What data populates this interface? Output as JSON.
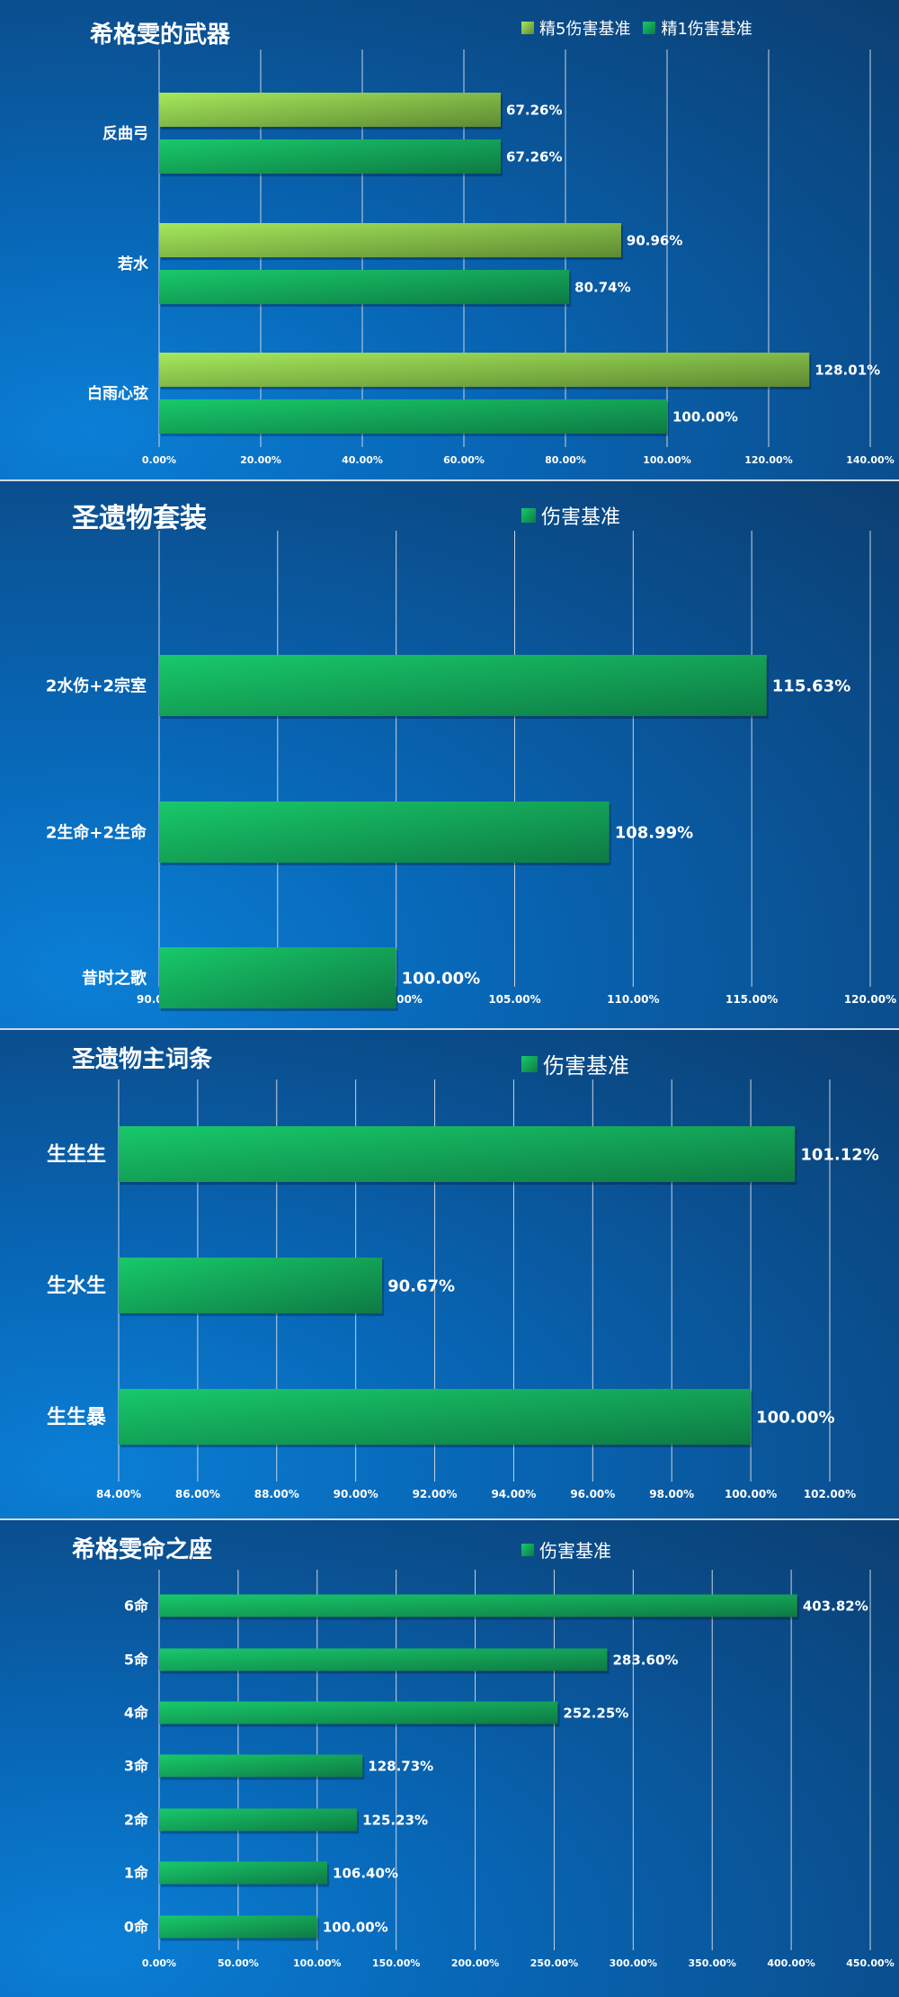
{
  "chart_data": [
    {
      "type": "bar",
      "title": "希格雯的武器",
      "categories": [
        "反曲弓",
        "若水",
        "白雨心弦"
      ],
      "series": [
        {
          "name": "精5伤害基准",
          "values": [
            67.26,
            90.96,
            128.01
          ],
          "value_labels": [
            "67.26%",
            "90.96%",
            "128.01%"
          ]
        },
        {
          "name": "精1伤害基准",
          "values": [
            67.26,
            80.74,
            100.0
          ],
          "value_labels": [
            "67.26%",
            "80.74%",
            "100.00%"
          ]
        }
      ],
      "xlim": [
        0,
        140
      ],
      "ticks": [
        "0.00%",
        "20.00%",
        "40.00%",
        "60.00%",
        "80.00%",
        "100.00%",
        "120.00%",
        "140.00%"
      ],
      "legend_position": "top-right",
      "grid": true
    },
    {
      "type": "bar",
      "title": "圣遗物套装",
      "categories": [
        "2水伤+2宗室",
        "2生命+2生命",
        "昔时之歌"
      ],
      "series": [
        {
          "name": "伤害基准",
          "values": [
            115.63,
            108.99,
            100.0
          ],
          "value_labels": [
            "115.63%",
            "108.99%",
            "100.00%"
          ]
        }
      ],
      "xlim": [
        90,
        120
      ],
      "ticks": [
        "90.00%",
        "95.00%",
        "100.00%",
        "105.00%",
        "110.00%",
        "115.00%",
        "120.00%"
      ],
      "legend_position": "top-center",
      "grid": true
    },
    {
      "type": "bar",
      "title": "圣遗物主词条",
      "categories": [
        "生生生",
        "生水生",
        "生生暴"
      ],
      "series": [
        {
          "name": "伤害基准",
          "values": [
            101.12,
            90.67,
            100.0
          ],
          "value_labels": [
            "101.12%",
            "90.67%",
            "100.00%"
          ]
        }
      ],
      "xlim": [
        84,
        102
      ],
      "ticks": [
        "84.00%",
        "86.00%",
        "88.00%",
        "90.00%",
        "92.00%",
        "94.00%",
        "96.00%",
        "98.00%",
        "100.00%",
        "102.00%"
      ],
      "legend_position": "top-center",
      "grid": true
    },
    {
      "type": "bar",
      "title": "希格雯命之座",
      "categories": [
        "6命",
        "5命",
        "4命",
        "3命",
        "2命",
        "1命",
        "0命"
      ],
      "series": [
        {
          "name": "伤害基准",
          "values": [
            403.82,
            283.6,
            252.25,
            128.73,
            125.23,
            106.4,
            100.0
          ],
          "value_labels": [
            "403.82%",
            "283.60%",
            "252.25%",
            "128.73%",
            "125.23%",
            "106.40%",
            "100.00%"
          ]
        }
      ],
      "xlim": [
        0,
        450
      ],
      "ticks": [
        "0.00%",
        "50.00%",
        "100.00%",
        "150.00%",
        "200.00%",
        "250.00%",
        "300.00%",
        "350.00%",
        "400.00%",
        "450.00%"
      ],
      "legend_position": "top-center",
      "grid": true
    }
  ],
  "colors": {
    "series_light_green_start": "#a6e85c",
    "series_light_green_end": "#5e8a32",
    "series_green_start": "#18c96a",
    "series_green_end": "#0e7a43",
    "grid": "#c9d3df",
    "text": "#ffffff"
  }
}
